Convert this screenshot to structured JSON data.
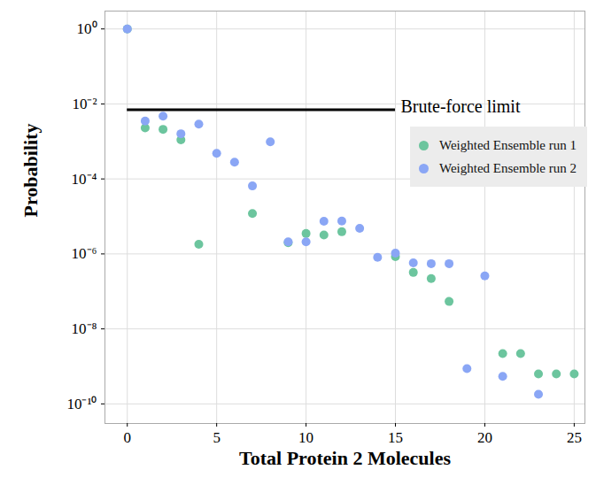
{
  "chart_data": {
    "type": "scatter",
    "x_label": "Total Protein 2 Molecules",
    "y_label": "Probability",
    "log": "y",
    "grid": true,
    "legend": "top-right",
    "marker": "circle",
    "x": [
      0,
      1,
      2,
      3,
      4,
      5,
      6,
      7,
      8,
      9,
      10,
      11,
      12,
      13,
      14,
      15,
      16,
      17,
      18,
      19,
      20,
      21,
      22,
      23,
      24,
      25
    ],
    "series": [
      {
        "name": "Weighted Ensemble run 1",
        "color": "#6cc59e",
        "values": [
          1,
          0.0023,
          0.0021,
          0.0011,
          1.8e-06,
          null,
          null,
          1.2e-05,
          null,
          2e-06,
          3.5e-06,
          3.2e-06,
          3.9e-06,
          null,
          null,
          8.5e-07,
          3.2e-07,
          2.2e-07,
          5.4e-08,
          null,
          null,
          2.2e-09,
          2.2e-09,
          6.3e-10,
          6.3e-10,
          6.3e-10
        ]
      },
      {
        "name": "Weighted Ensemble run 2",
        "color": "#8aa6f5",
        "values": [
          1,
          0.0035,
          0.0047,
          0.0016,
          0.0029,
          0.00048,
          0.00028,
          6.5e-05,
          0.00098,
          2.1e-06,
          2.1e-06,
          7.4e-06,
          7.5e-06,
          4.8e-06,
          8.1e-07,
          1.05e-06,
          5.8e-07,
          5.5e-07,
          5.5e-07,
          8.7e-10,
          2.6e-07,
          5.4e-10,
          null,
          1.8e-10,
          null,
          null
        ]
      }
    ],
    "annotations": [
      {
        "text": "Brute-force limit",
        "y": 0.007,
        "x_start": 0,
        "x_end": 15
      }
    ],
    "xlim": [
      -1.25,
      25.6
    ],
    "xticks": [
      0,
      5,
      10,
      15,
      20,
      25
    ],
    "ylim": [
      3e-11,
      3
    ],
    "yticks": [
      {
        "value": 1,
        "label": "10⁰"
      },
      {
        "value": 0.01,
        "label": "10⁻²"
      },
      {
        "value": 0.0001,
        "label": "10⁻⁴"
      },
      {
        "value": 1e-06,
        "label": "10⁻⁶"
      },
      {
        "value": 1e-08,
        "label": "10⁻⁸"
      },
      {
        "value": 1e-10,
        "label": "10⁻¹⁰"
      }
    ]
  }
}
